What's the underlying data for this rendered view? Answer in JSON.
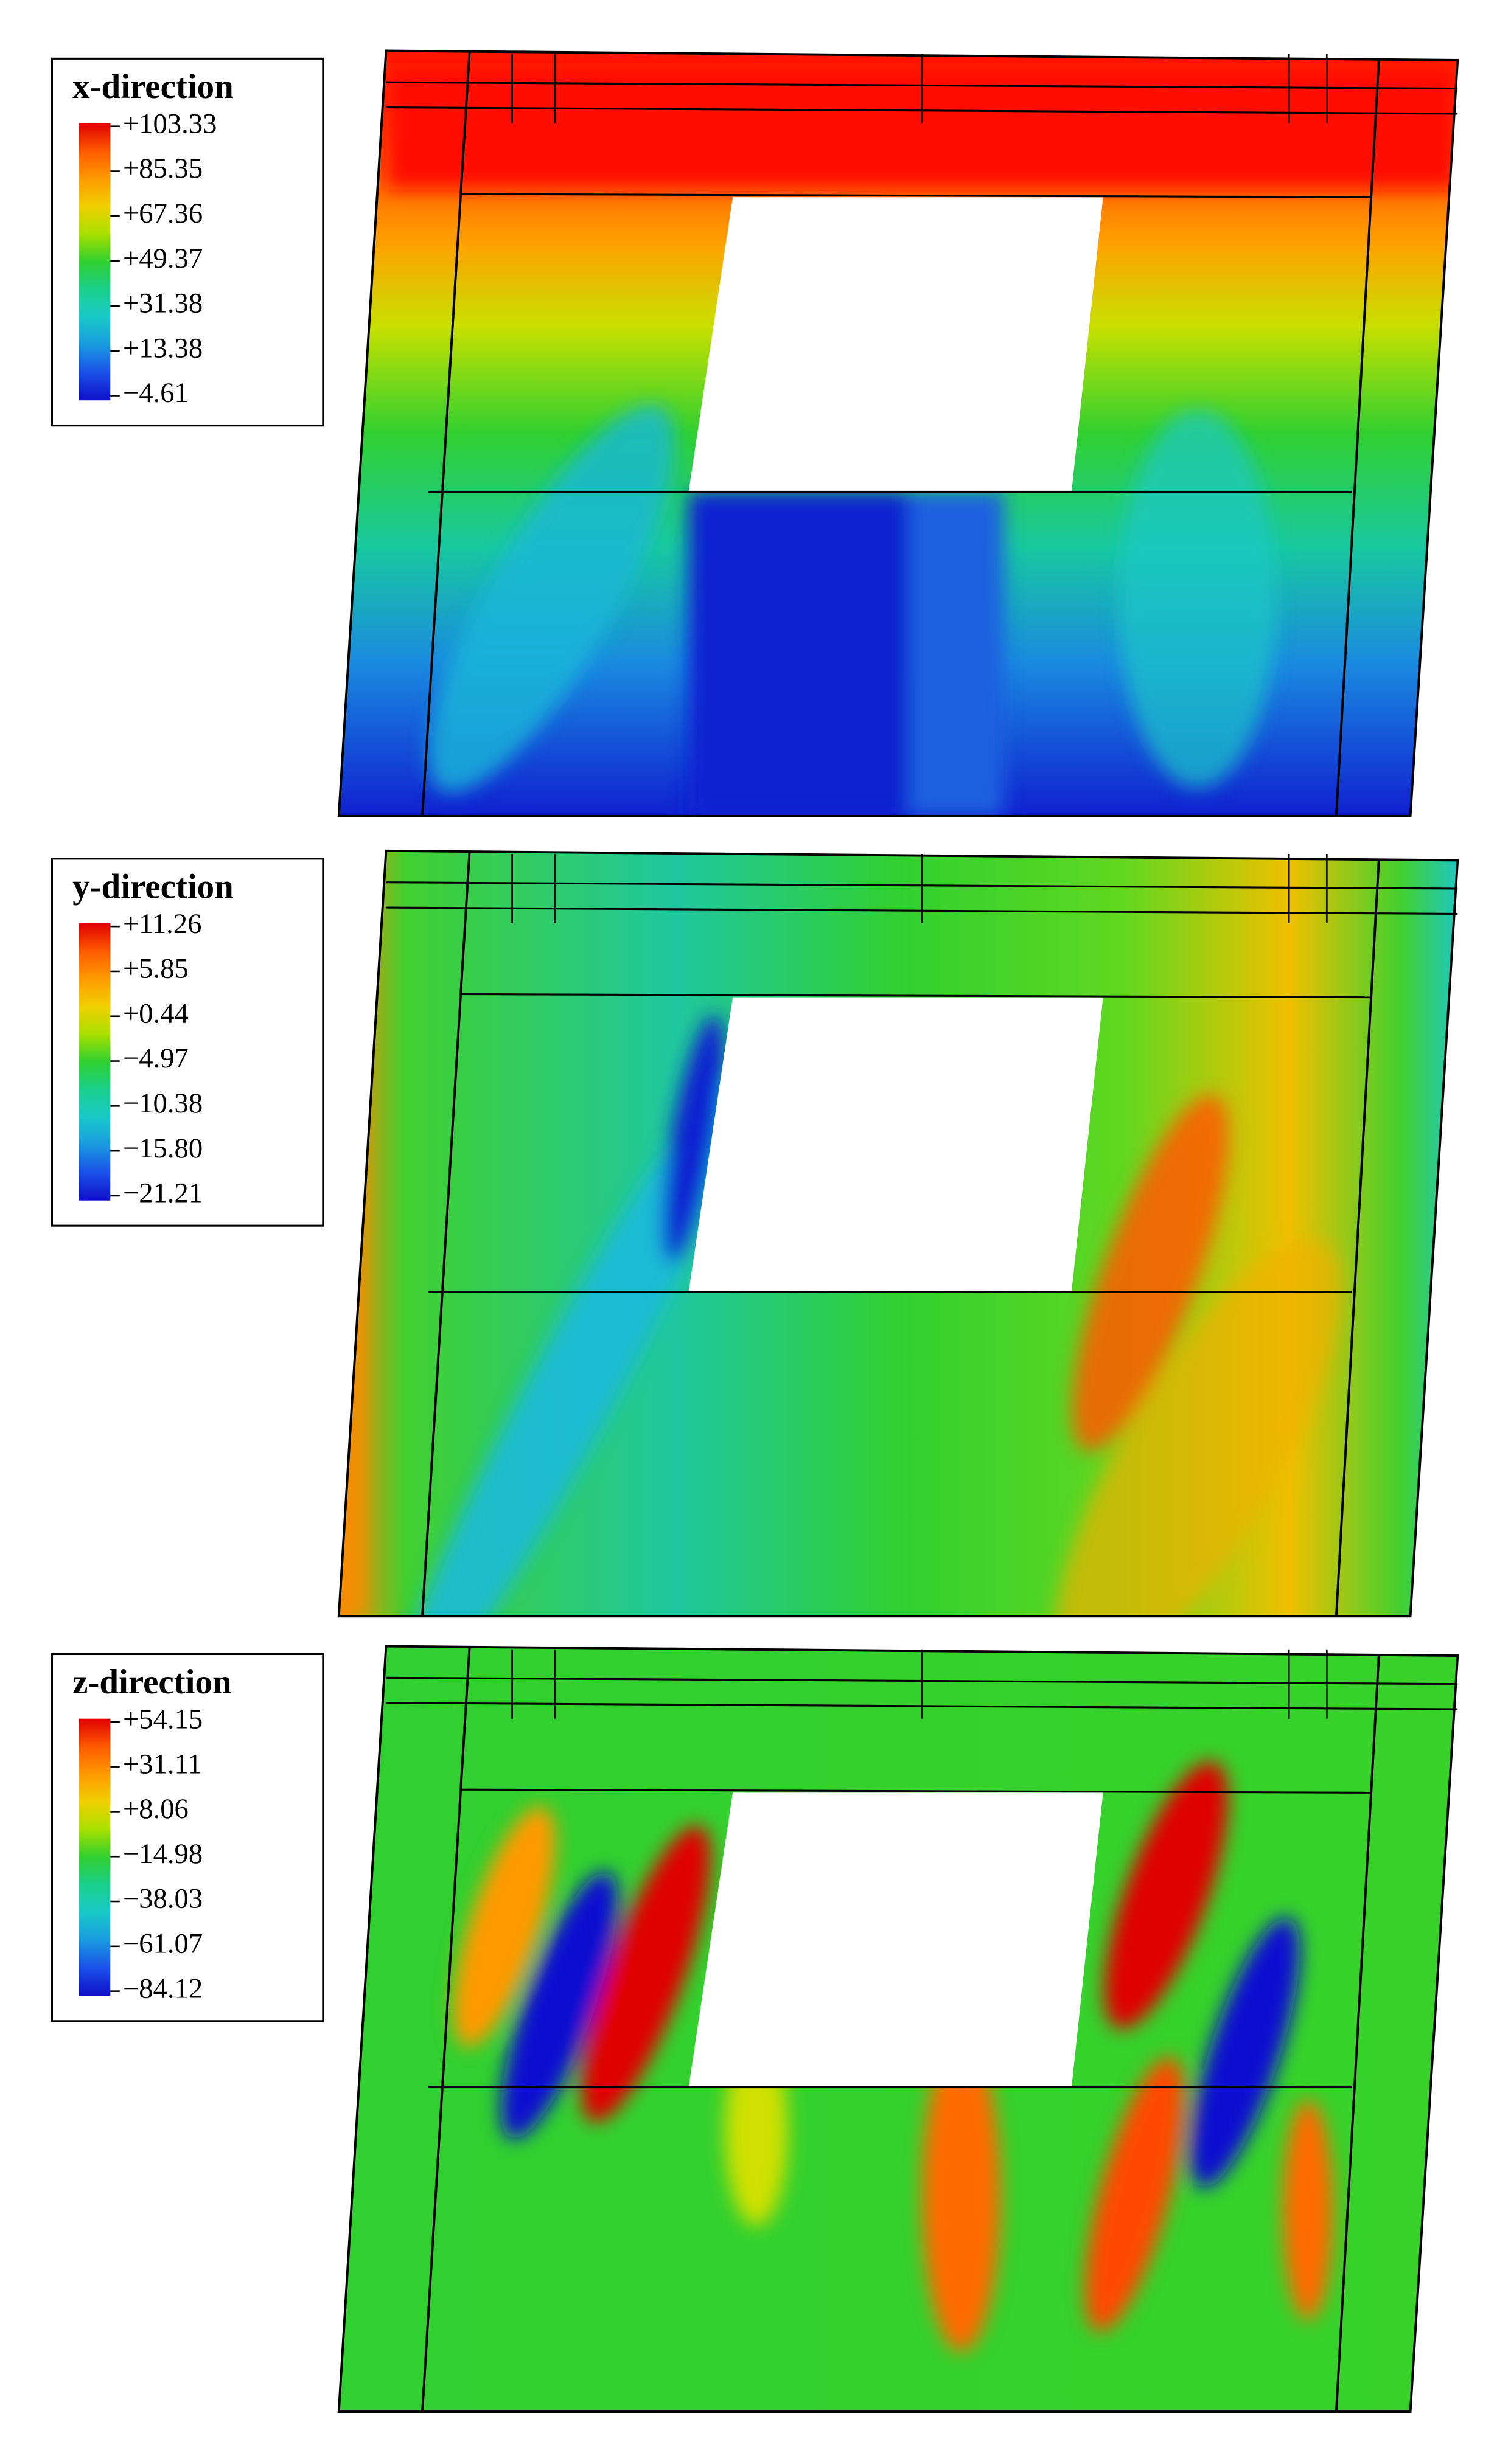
{
  "panels": [
    {
      "title": "x-direction",
      "legend_labels": [
        "+103.33",
        "+85.35",
        "+67.36",
        "+49.37",
        "+31.38",
        "+13.38",
        "−4.61"
      ]
    },
    {
      "title": "y-direction",
      "legend_labels": [
        "+11.26",
        "+5.85",
        "+0.44",
        "−4.97",
        "−10.38",
        "−15.80",
        "−21.21"
      ]
    },
    {
      "title": "z-direction",
      "legend_labels": [
        "+54.15",
        "+31.11",
        "+8.06",
        "−14.98",
        "−38.03",
        "−61.07",
        "−84.12"
      ]
    }
  ]
}
